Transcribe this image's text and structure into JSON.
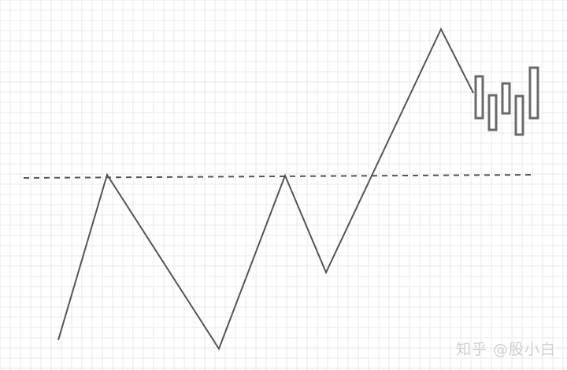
{
  "watermark": {
    "text": "知乎 @股小白"
  },
  "style": {
    "grid_color": "#e8e8e8",
    "line_color": "#555555",
    "dash_color": "#555555",
    "candle_border": "#6a6a6a",
    "candle_fill": "#ffffff"
  }
}
